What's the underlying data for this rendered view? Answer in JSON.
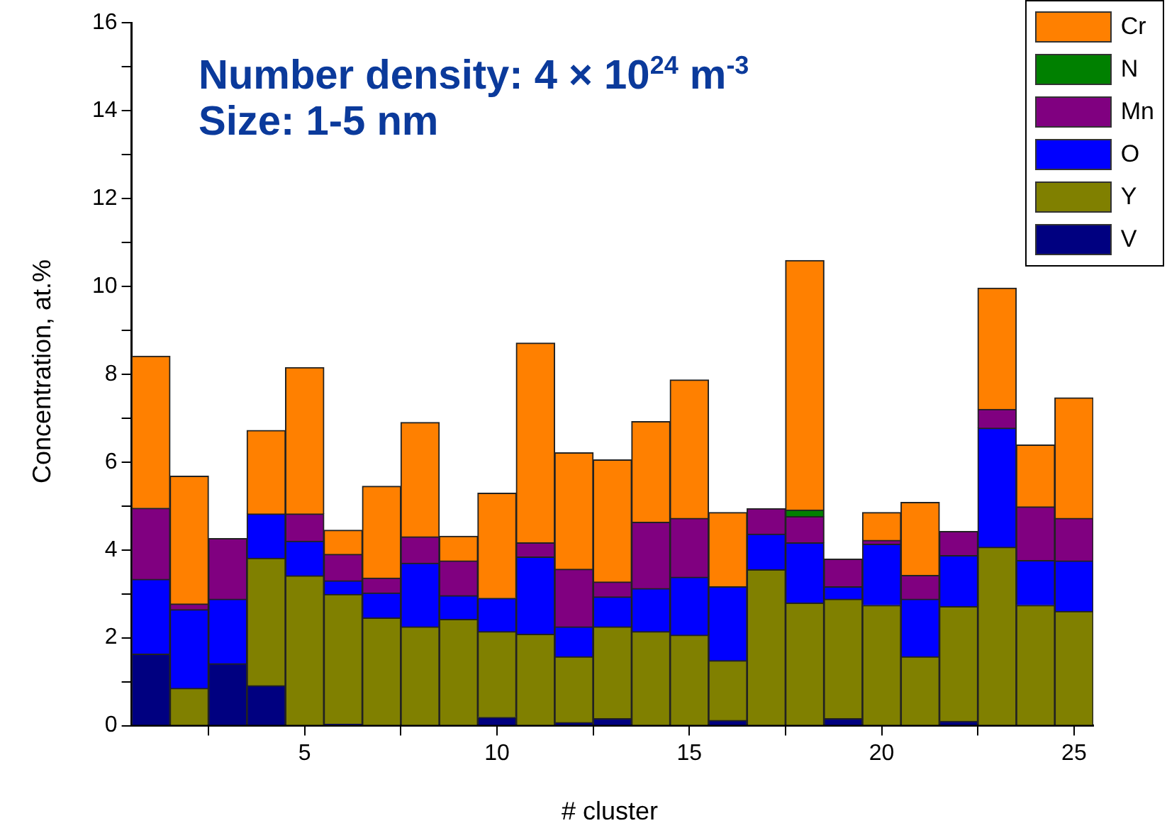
{
  "chart_data": {
    "type": "bar",
    "title": "Number density: 4 × 10$^{24}$ m$^{-3}$",
    "subtitle": "Size: 1-5 nm",
    "xlabel": "# cluster",
    "ylabel": "Concentration, at.%",
    "x": [
      1,
      2,
      3,
      4,
      5,
      6,
      7,
      8,
      9,
      10,
      11,
      12,
      13,
      14,
      15,
      16,
      17,
      18,
      19,
      20,
      21,
      22,
      23,
      24,
      25
    ],
    "stacked": true,
    "series": [
      {
        "name": "V",
        "color": "#000080",
        "values": [
          1.63,
          0,
          1.41,
          0.91,
          0,
          0.03,
          0,
          0,
          0,
          0.19,
          0,
          0.07,
          0.16,
          0,
          0,
          0.12,
          0,
          0,
          0.16,
          0,
          0,
          0.1,
          0,
          null,
          0
        ]
      },
      {
        "name": "Y",
        "color": "#808000",
        "values": [
          0,
          0.85,
          0,
          2.9,
          3.41,
          2.96,
          2.45,
          2.25,
          2.42,
          1.95,
          2.08,
          1.5,
          2.09,
          2.14,
          2.06,
          1.36,
          3.55,
          2.79,
          2.72,
          2.74,
          1.57,
          2.61,
          4.06,
          2.74,
          2.6
        ]
      },
      {
        "name": "O",
        "color": "#0000ff",
        "values": [
          1.7,
          1.79,
          1.47,
          1.01,
          0.79,
          0.31,
          0.57,
          1.45,
          0.54,
          0.76,
          1.76,
          0.68,
          0.68,
          0.98,
          1.32,
          1.68,
          0.81,
          1.37,
          0.28,
          1.39,
          1.31,
          1.16,
          2.71,
          1.02,
          1.15
        ]
      },
      {
        "name": "Mn",
        "color": "#800080",
        "values": [
          1.62,
          0.13,
          1.38,
          0,
          0.62,
          0.6,
          0.34,
          0.6,
          0.79,
          0,
          0.32,
          1.31,
          0.34,
          1.51,
          1.34,
          0,
          0.58,
          0.6,
          0.63,
          0.09,
          0.54,
          0.55,
          0.43,
          1.22,
          0.97
        ]
      },
      {
        "name": "N",
        "color": "#008000",
        "values": [
          0,
          0,
          0,
          0,
          0,
          0,
          0,
          0,
          0,
          0,
          0,
          0,
          0,
          0,
          0,
          0,
          0,
          0.15,
          0,
          0,
          0,
          0,
          0,
          0,
          0
        ]
      },
      {
        "name": "Cr",
        "color": "#ff8000",
        "values": [
          3.46,
          2.91,
          0,
          1.9,
          3.33,
          0.55,
          2.09,
          2.6,
          0.56,
          2.39,
          4.55,
          2.65,
          2.78,
          2.29,
          3.15,
          1.69,
          0,
          5.68,
          0,
          0.63,
          1.66,
          0,
          2.76,
          1.41,
          2.74
        ]
      }
    ],
    "xlim": [
      0.5,
      25.5
    ],
    "xticks": [
      {
        "value": 2.5,
        "label": null
      },
      5,
      {
        "value": 7.5,
        "label": null
      },
      10,
      {
        "value": 12.5,
        "label": null
      },
      15,
      {
        "value": 17.5,
        "label": null
      },
      20,
      {
        "value": 22.5,
        "label": null
      },
      25
    ],
    "ylim": [
      0,
      16
    ],
    "yticks": [
      0,
      {
        "value": 1,
        "label": null
      },
      2,
      {
        "value": 3,
        "label": null
      },
      4,
      {
        "value": 5,
        "label": null
      },
      6,
      {
        "value": 7,
        "label": null
      },
      8,
      {
        "value": 9,
        "label": null
      },
      10,
      {
        "value": 11,
        "label": null
      },
      12,
      {
        "value": 13,
        "label": null
      },
      14,
      {
        "value": 15,
        "label": null
      },
      16
    ],
    "grid": false,
    "legend": "top right"
  }
}
